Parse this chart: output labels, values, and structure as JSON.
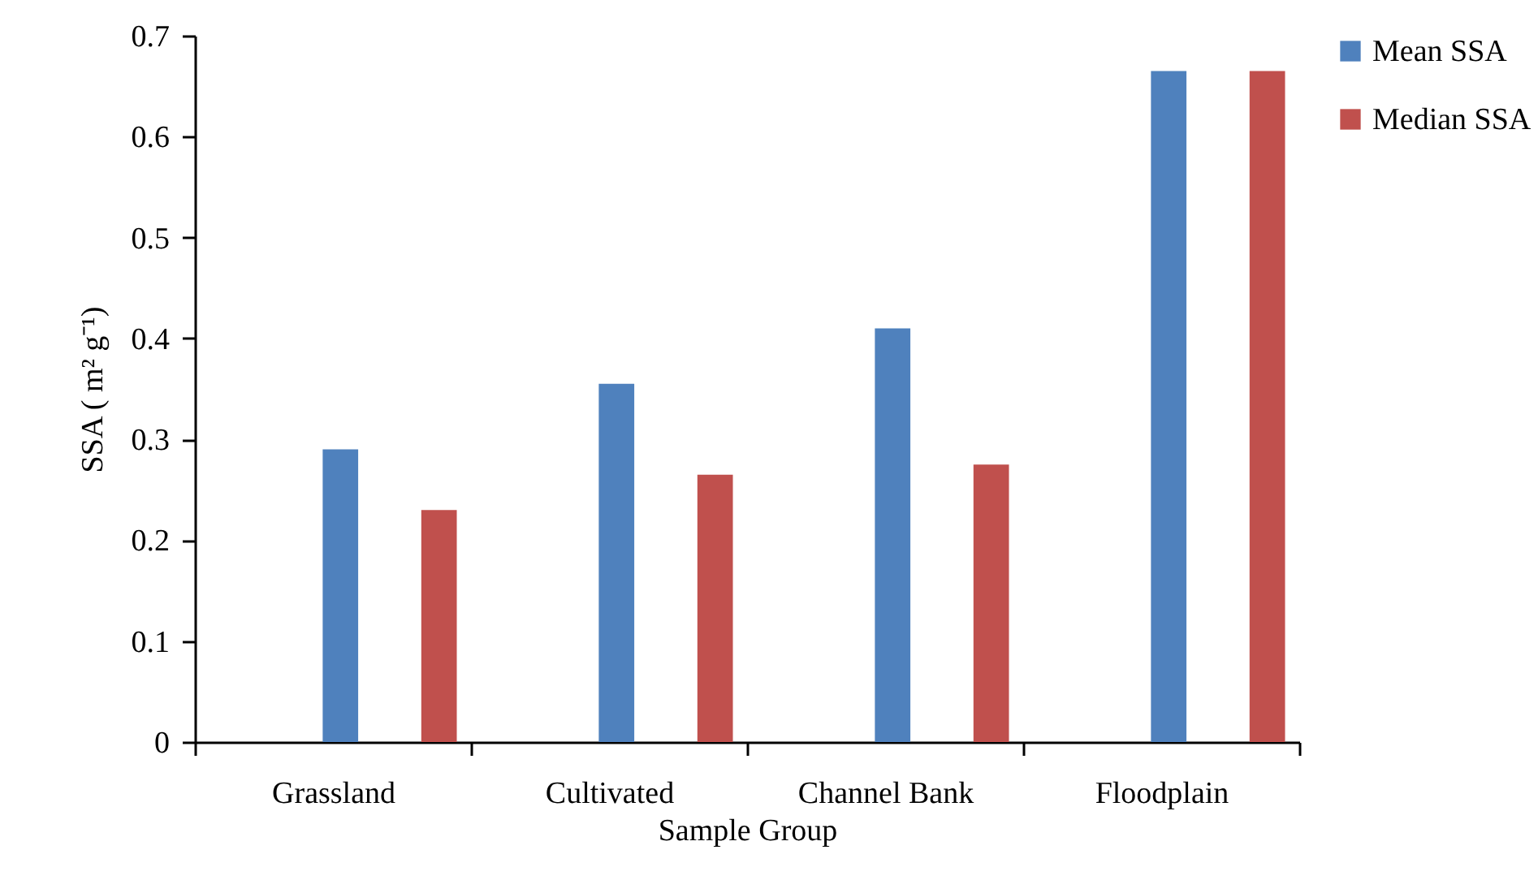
{
  "chart_data": {
    "type": "bar",
    "xlabel": "Sample Group",
    "ylabel": "SSA ( m² g⁻¹)",
    "categories": [
      "Grassland",
      "Cultivated",
      "Channel Bank",
      "Floodplain"
    ],
    "series": [
      {
        "name": "Mean SSA",
        "color": "#4f81bd",
        "values": [
          0.29,
          0.355,
          0.41,
          0.665
        ]
      },
      {
        "name": "Median SSA",
        "color": "#c0504d",
        "values": [
          0.23,
          0.265,
          0.275,
          0.665
        ]
      }
    ],
    "ylim": [
      0,
      0.7
    ],
    "yticks": [
      0,
      0.1,
      0.2,
      0.3,
      0.4,
      0.5,
      0.6,
      0.7
    ],
    "grid": false,
    "legend": "right"
  }
}
